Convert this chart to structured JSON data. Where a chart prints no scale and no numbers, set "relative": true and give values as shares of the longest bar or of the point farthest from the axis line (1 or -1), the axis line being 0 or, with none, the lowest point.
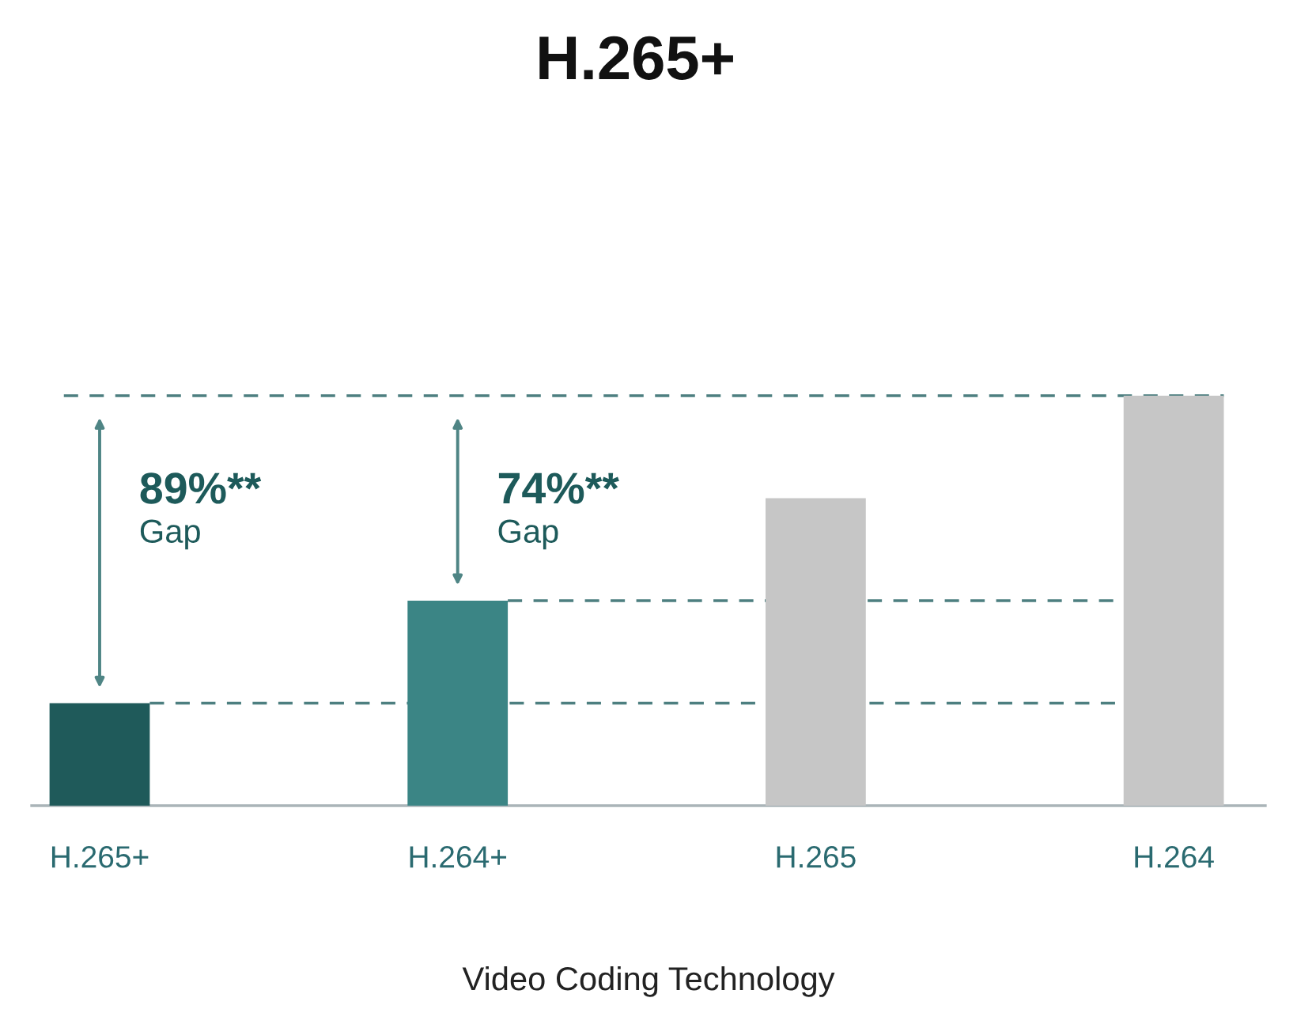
{
  "chart_data": {
    "type": "bar",
    "title": "H.265+",
    "xlabel": "Video Coding Technology",
    "categories": [
      "H.265+",
      "H.264+",
      "H.265",
      "H.264"
    ],
    "values": [
      0.25,
      0.5,
      0.75,
      1
    ],
    "colors": [
      "#1f5a5a",
      "#3b8585",
      "#c6c6c6",
      "#c6c6c6"
    ],
    "relative": true,
    "ref_lines": [
      {
        "axis": "y",
        "value": 1,
        "color": "#4d7f80",
        "line_style": "dashed"
      },
      {
        "axis": "y",
        "value": 0.5,
        "color": "#4d7f80",
        "line_style": "dashed"
      },
      {
        "axis": "y",
        "value": 0.25,
        "color": "#4d7f80",
        "line_style": "dashed"
      }
    ],
    "annotations": [
      "89%**\nGap",
      "74%**\nGap"
    ],
    "grid": false,
    "legend": false
  }
}
